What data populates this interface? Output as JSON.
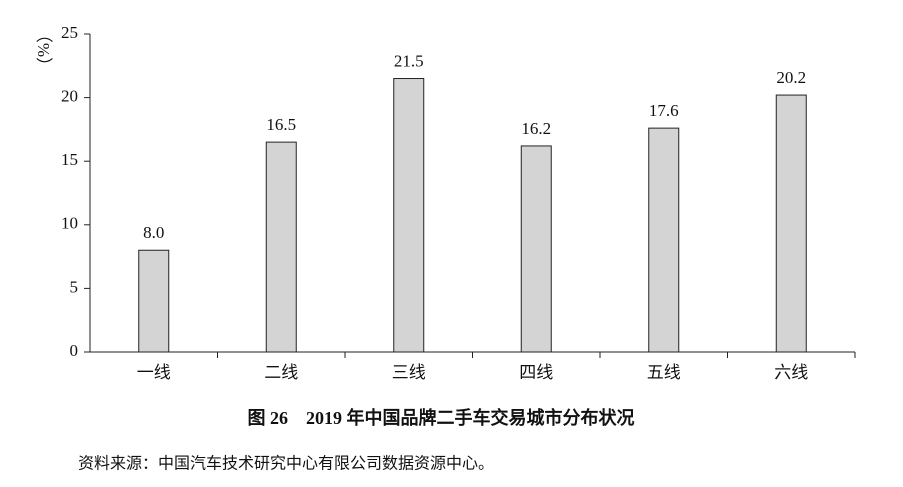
{
  "chart_data": {
    "type": "bar",
    "title": "图 26　2019 年中国品牌二手车交易城市分布状况",
    "source": "资料来源：中国汽车技术研究中心有限公司数据资源中心。",
    "y_label": "（%）",
    "categories": [
      "一线",
      "二线",
      "三线",
      "四线",
      "五线",
      "六线"
    ],
    "values": [
      8.0,
      16.5,
      21.5,
      16.2,
      17.6,
      20.2
    ],
    "value_labels": [
      "8.0",
      "16.5",
      "21.5",
      "16.2",
      "17.6",
      "20.2"
    ],
    "color": "#d4d4d4",
    "ylim": [
      0,
      25
    ],
    "yticks": [
      0,
      5,
      10,
      15,
      20,
      25
    ],
    "grid": false
  }
}
